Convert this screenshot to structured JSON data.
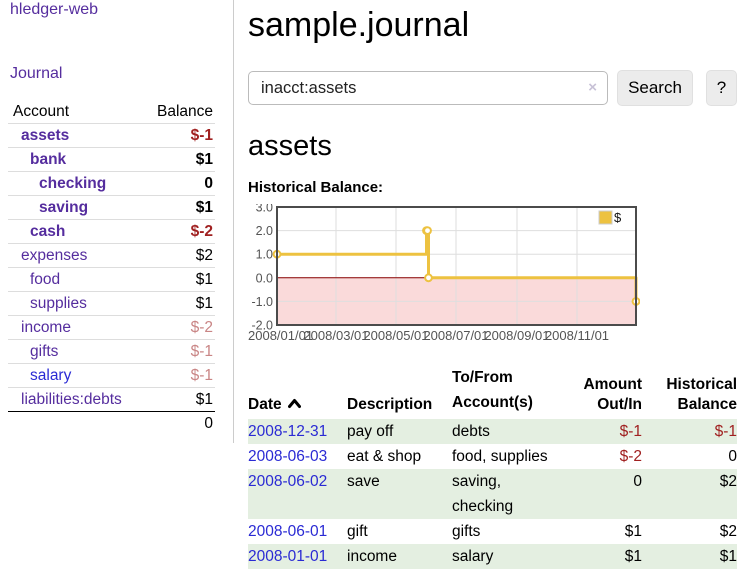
{
  "app": {
    "brand": "hledger-web"
  },
  "sidebar": {
    "nav_journal": "Journal",
    "accounts_table": {
      "headers": {
        "account": "Account",
        "balance": "Balance"
      },
      "rows": [
        {
          "name": "assets",
          "balance": "$-1",
          "indent": 0,
          "bold": true,
          "link": "purple",
          "balance_class": "neg-strong"
        },
        {
          "name": "bank",
          "balance": "$1",
          "indent": 1,
          "bold": true,
          "link": "purple",
          "balance_class": "normal"
        },
        {
          "name": "checking",
          "balance": "0",
          "indent": 2,
          "bold": true,
          "link": "purple",
          "balance_class": "normal"
        },
        {
          "name": "saving",
          "balance": "$1",
          "indent": 2,
          "bold": true,
          "link": "purple",
          "balance_class": "normal"
        },
        {
          "name": "cash",
          "balance": "$-2",
          "indent": 1,
          "bold": true,
          "link": "purple",
          "balance_class": "neg-strong"
        },
        {
          "name": "expenses",
          "balance": "$2",
          "indent": 0,
          "bold": false,
          "link": "purple",
          "balance_class": "normal"
        },
        {
          "name": "food",
          "balance": "$1",
          "indent": 1,
          "bold": false,
          "link": "purple",
          "balance_class": "normal"
        },
        {
          "name": "supplies",
          "balance": "$1",
          "indent": 1,
          "bold": false,
          "link": "purple",
          "balance_class": "normal"
        },
        {
          "name": "income",
          "balance": "$-2",
          "indent": 0,
          "bold": false,
          "link": "purple",
          "balance_class": "neg-muted"
        },
        {
          "name": "gifts",
          "balance": "$-1",
          "indent": 1,
          "bold": false,
          "link": "purple",
          "balance_class": "neg-muted"
        },
        {
          "name": "salary",
          "balance": "$-1",
          "indent": 1,
          "bold": false,
          "link": "blue",
          "balance_class": "neg-muted"
        },
        {
          "name": "liabilities:debts",
          "balance": "$1",
          "indent": 0,
          "bold": false,
          "link": "purple",
          "balance_class": "normal"
        }
      ],
      "total": "0"
    }
  },
  "main": {
    "title": "sample.journal",
    "search": {
      "value": "inacct:assets",
      "clear_icon": "×",
      "button": "Search",
      "help_button": "?"
    },
    "account_heading": "assets",
    "chart_heading": "Historical Balance:"
  },
  "chart_data": {
    "type": "line",
    "step": true,
    "series": [
      {
        "name": "$",
        "color": "#edc240",
        "points": [
          [
            "2008-01-01",
            1
          ],
          [
            "2008-06-01",
            2
          ],
          [
            "2008-06-02",
            2
          ],
          [
            "2008-06-03",
            0
          ],
          [
            "2008-12-31",
            -1
          ]
        ]
      }
    ],
    "x_range": [
      "2008-01-01",
      "2008-12-31"
    ],
    "ylim": [
      -2,
      3
    ],
    "y_ticks": [
      3.0,
      2.0,
      1.0,
      0.0,
      -1.0,
      -2.0
    ],
    "x_ticks": [
      "2008/01/01",
      "2008/03/01",
      "2008/05/01",
      "2008/07/01",
      "2008/09/01",
      "2008/11/01"
    ],
    "legend": {
      "label": "$",
      "position": "top-right"
    },
    "grid": true,
    "negative_region_color": "#fadada",
    "zero_line_color": "#8b0000",
    "axis_label_color": "#545454"
  },
  "register_table": {
    "headers": {
      "date": "Date",
      "description": "Description",
      "tofrom": "To/From Account(s)",
      "amount": "Amount Out/In",
      "balance": "Historical Balance"
    },
    "rows": [
      {
        "date": "2008-12-31",
        "description": "pay off",
        "accounts": "debts",
        "amount": "$-1",
        "amount_neg": true,
        "balance": "$-1",
        "balance_neg": true,
        "shaded": true
      },
      {
        "date": "2008-06-03",
        "description": "eat & shop",
        "accounts": "food, supplies",
        "amount": "$-2",
        "amount_neg": true,
        "balance": "0",
        "balance_neg": false,
        "shaded": false
      },
      {
        "date": "2008-06-02",
        "description": "save",
        "accounts": "saving, checking",
        "amount": "0",
        "amount_neg": false,
        "balance": "$2",
        "balance_neg": false,
        "shaded": true
      },
      {
        "date": "2008-06-01",
        "description": "gift",
        "accounts": "gifts",
        "amount": "$1",
        "amount_neg": false,
        "balance": "$2",
        "balance_neg": false,
        "shaded": false
      },
      {
        "date": "2008-01-01",
        "description": "income",
        "accounts": "salary",
        "amount": "$1",
        "amount_neg": false,
        "balance": "$1",
        "balance_neg": false,
        "shaded": true
      }
    ]
  },
  "colors": {
    "link_purple": "#552d9e",
    "link_blue": "#2a2ad4",
    "negative_strong": "#a02020",
    "negative_muted": "#c98585",
    "row_shade_green": "#e4efe1",
    "chart_line_gold": "#edc240",
    "chart_negative_pink": "#fadada",
    "chart_zero_line": "#8b0000"
  }
}
